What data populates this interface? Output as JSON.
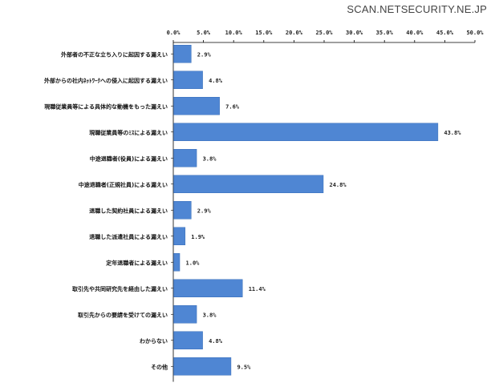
{
  "watermark": "SCAN.NETSECURITY.NE.JP",
  "chart_data": {
    "type": "bar",
    "orientation": "horizontal",
    "categories": [
      "外部者の不正な立ち入りに起因する漏えい",
      "外部からの社内ﾈｯﾄﾜｰｸへの侵入に起因する漏えい",
      "現職従業員等による具体的な動機をもった漏えい",
      "現職従業員等のﾐｽによる漏えい",
      "中途退職者(役員)による漏えい",
      "中途退職者(正規社員)による漏えい",
      "退職した契約社員による漏えい",
      "退職した派遣社員による漏えい",
      "定年退職者による漏えい",
      "取引先や共同研究先を経由した漏えい",
      "取引先からの要請を受けての漏えい",
      "わからない",
      "その他"
    ],
    "values": [
      2.9,
      4.8,
      7.6,
      43.8,
      3.8,
      24.8,
      2.9,
      1.9,
      1.0,
      11.4,
      3.8,
      4.8,
      9.5
    ],
    "value_labels": [
      "2.9%",
      "4.8%",
      "7.6%",
      "43.8%",
      "3.8%",
      "24.8%",
      "2.9%",
      "1.9%",
      "1.0%",
      "11.4%",
      "3.8%",
      "4.8%",
      "9.5%"
    ],
    "xlim": [
      0,
      50
    ],
    "ticks": [
      0,
      5,
      10,
      15,
      20,
      25,
      30,
      35,
      40,
      45,
      50
    ],
    "tick_labels": [
      "0.0%",
      "5.0%",
      "10.0%",
      "15.0%",
      "20.0%",
      "25.0%",
      "30.0%",
      "35.0%",
      "40.0%",
      "45.0%",
      "50.0%"
    ],
    "axis_position": "top",
    "grid": false,
    "bar_color": "#4f86d3",
    "bar_edge_color": "#3a6fb8",
    "title": "",
    "xlabel": "",
    "ylabel": ""
  }
}
